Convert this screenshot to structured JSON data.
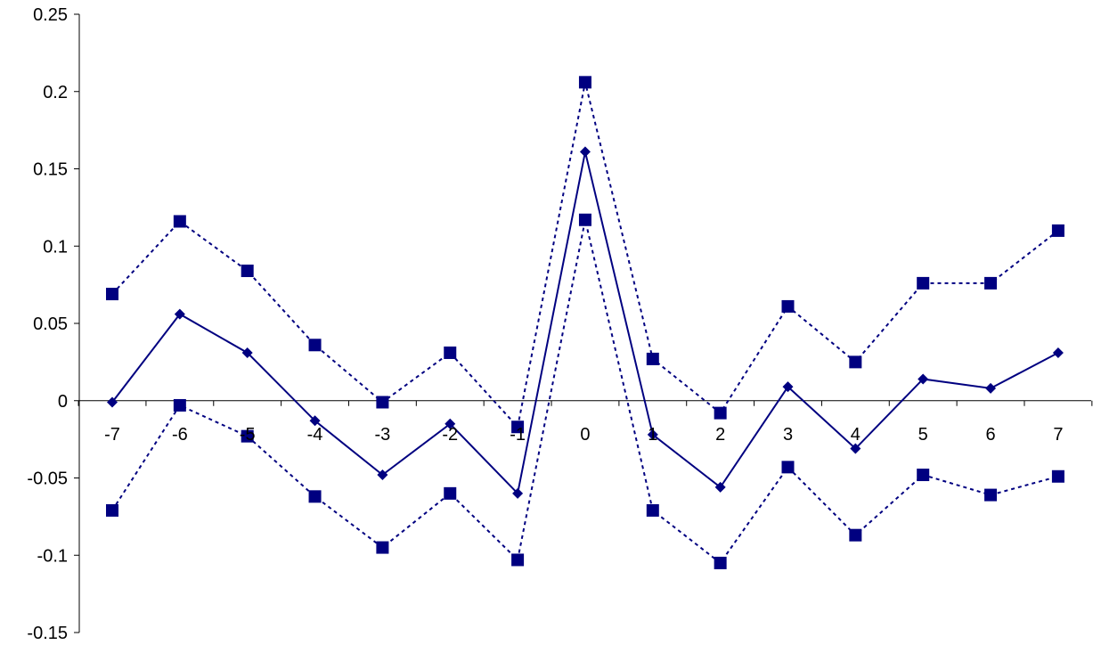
{
  "chart_data": {
    "type": "line",
    "title": "",
    "xlabel": "",
    "ylabel": "",
    "x": [
      -7,
      -6,
      -5,
      -4,
      -3,
      -2,
      -1,
      0,
      1,
      2,
      3,
      4,
      5,
      6,
      7
    ],
    "x_tick_labels": [
      "-7",
      "-6",
      "-5",
      "-4",
      "-3",
      "-2",
      "-1",
      "0",
      "1",
      "2",
      "3",
      "4",
      "5",
      "6",
      "7"
    ],
    "ylim": [
      -0.15,
      0.25
    ],
    "y_ticks": [
      -0.15,
      -0.1,
      -0.05,
      0,
      0.05,
      0.1,
      0.15,
      0.2,
      0.25
    ],
    "y_tick_labels": [
      "-0.15",
      "-0.1",
      "-0.05",
      "0",
      "0.05",
      "0.1",
      "0.15",
      "0.2",
      "0.25"
    ],
    "grid": false,
    "legend": "none",
    "series": [
      {
        "role": "upper-band",
        "line_style": "dotted",
        "marker": "square",
        "color": "#000080",
        "values": [
          0.069,
          0.116,
          0.084,
          0.036,
          -0.001,
          0.031,
          -0.017,
          0.206,
          0.027,
          -0.008,
          0.061,
          0.025,
          0.076,
          0.076,
          0.11
        ]
      },
      {
        "role": "estimate",
        "line_style": "solid",
        "marker": "diamond",
        "color": "#000080",
        "values": [
          -0.001,
          0.056,
          0.031,
          -0.013,
          -0.048,
          -0.015,
          -0.06,
          0.161,
          -0.022,
          -0.056,
          0.009,
          -0.031,
          0.014,
          0.008,
          0.031
        ]
      },
      {
        "role": "lower-band",
        "line_style": "dotted",
        "marker": "square",
        "color": "#000080",
        "values": [
          -0.071,
          -0.003,
          -0.023,
          -0.062,
          -0.095,
          -0.06,
          -0.103,
          0.117,
          -0.071,
          -0.105,
          -0.043,
          -0.087,
          -0.048,
          -0.061,
          -0.049
        ]
      }
    ]
  }
}
